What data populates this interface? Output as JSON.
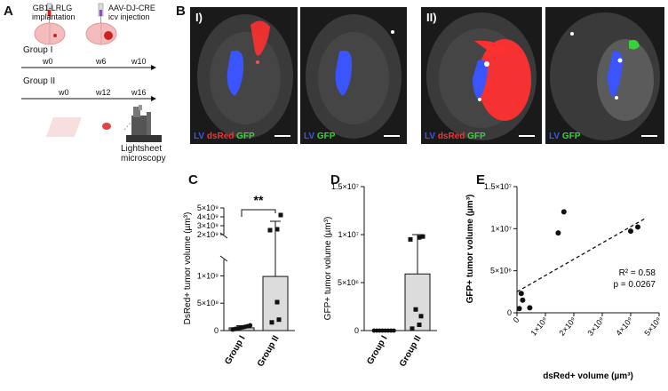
{
  "panelA": {
    "letter": "A",
    "step1": [
      "GB1-LRLG",
      "implantation"
    ],
    "step2": [
      "AAV-DJ-CRE",
      "icv injection"
    ],
    "group1": {
      "label": "Group I",
      "t0": "w0",
      "t1": "w6",
      "t2": "w10"
    },
    "group2": {
      "label": "Group II",
      "t0": "w0",
      "t1": "w12",
      "t2": "w16"
    },
    "method": [
      "Lightsheet",
      "microscopy"
    ]
  },
  "panelB": {
    "letter": "B",
    "groupI": "I)",
    "groupII": "II)",
    "legend_lv": "LV",
    "legend_dsred": "dsRed",
    "legend_gfp": "GFP",
    "colors": {
      "lv": "#3a55ff",
      "dsred": "#ff3030",
      "gfp": "#3ccf3c"
    }
  },
  "panelC": {
    "letter": "C",
    "ylabel": "DsRed+ tumor volume (µm³)",
    "sig": "**",
    "categories": [
      "Group I",
      "Group II"
    ],
    "ticks_low": [
      "0",
      "5×10⁸",
      "1×10⁹"
    ],
    "ticks_high": [
      "2×10⁹",
      "3×10⁹",
      "4×10⁹",
      "5×10⁹"
    ]
  },
  "panelD": {
    "letter": "D",
    "ylabel": "GFP+ tumor volume (µm³)",
    "categories": [
      "Group I",
      "Group II"
    ],
    "ticks": [
      "0",
      "5×10⁶",
      "1×10⁷",
      "1.5×10⁷"
    ]
  },
  "panelE": {
    "letter": "E",
    "ylabel": "GFP+ tumor volume (µm³)",
    "xlabel": "dsRed+ volume (µm³)",
    "yticks": [
      "0",
      "5×10⁶",
      "1×10⁷",
      "1.5×10⁷"
    ],
    "xticks": [
      "0",
      "1×10⁹",
      "2×10⁹",
      "3×10⁹",
      "4×10⁹",
      "5×10⁹"
    ],
    "r2": "R² = 0.58",
    "p": "p = 0.0267"
  },
  "chart_data": [
    {
      "type": "bar",
      "panel": "C",
      "categories": [
        "Group I",
        "Group II"
      ],
      "ylabel": "DsRed+ tumor volume (µm³)",
      "y_axis_break": [
        1300000000,
        2000000000
      ],
      "ylim": [
        0,
        5000000000
      ],
      "means": [
        50000000,
        990000000
      ],
      "sd_upper": [
        90000000,
        3500000000
      ],
      "points": {
        "Group I": [
          20000000,
          30000000,
          40000000,
          50000000,
          60000000,
          70000000,
          80000000,
          95000000
        ],
        "Group II": [
          150000000,
          200000000,
          520000000,
          2500000000,
          2600000000,
          4200000000
        ]
      }
    },
    {
      "type": "bar",
      "panel": "D",
      "categories": [
        "Group I",
        "Group II"
      ],
      "ylabel": "GFP+ tumor volume (µm³)",
      "ylim": [
        0,
        15000000
      ],
      "means": [
        0,
        5900000
      ],
      "sd_upper": [
        0,
        10000000
      ],
      "points": {
        "Group I": [
          0,
          0,
          0,
          0,
          0,
          0,
          0,
          0
        ],
        "Group II": [
          200000,
          600000,
          1500000,
          2200000,
          9500000,
          9800000,
          9700000
        ]
      }
    },
    {
      "type": "scatter",
      "panel": "E",
      "xlabel": "dsRed+ volume (µm³)",
      "ylabel": "GFP+ tumor volume (µm³)",
      "xlim": [
        0,
        5000000000
      ],
      "ylim": [
        0,
        15000000
      ],
      "x": [
        80000000,
        150000000,
        200000000,
        450000000,
        1450000000,
        1650000000,
        4000000000,
        4250000000
      ],
      "y": [
        500000,
        2300000,
        1500000,
        600000,
        9500000,
        12000000,
        9700000,
        10200000
      ],
      "fit_line": {
        "x0": 0,
        "y0": 2500000,
        "x1": 4500000000,
        "y1": 11200000
      },
      "r2": 0.58,
      "p": 0.0267
    }
  ]
}
